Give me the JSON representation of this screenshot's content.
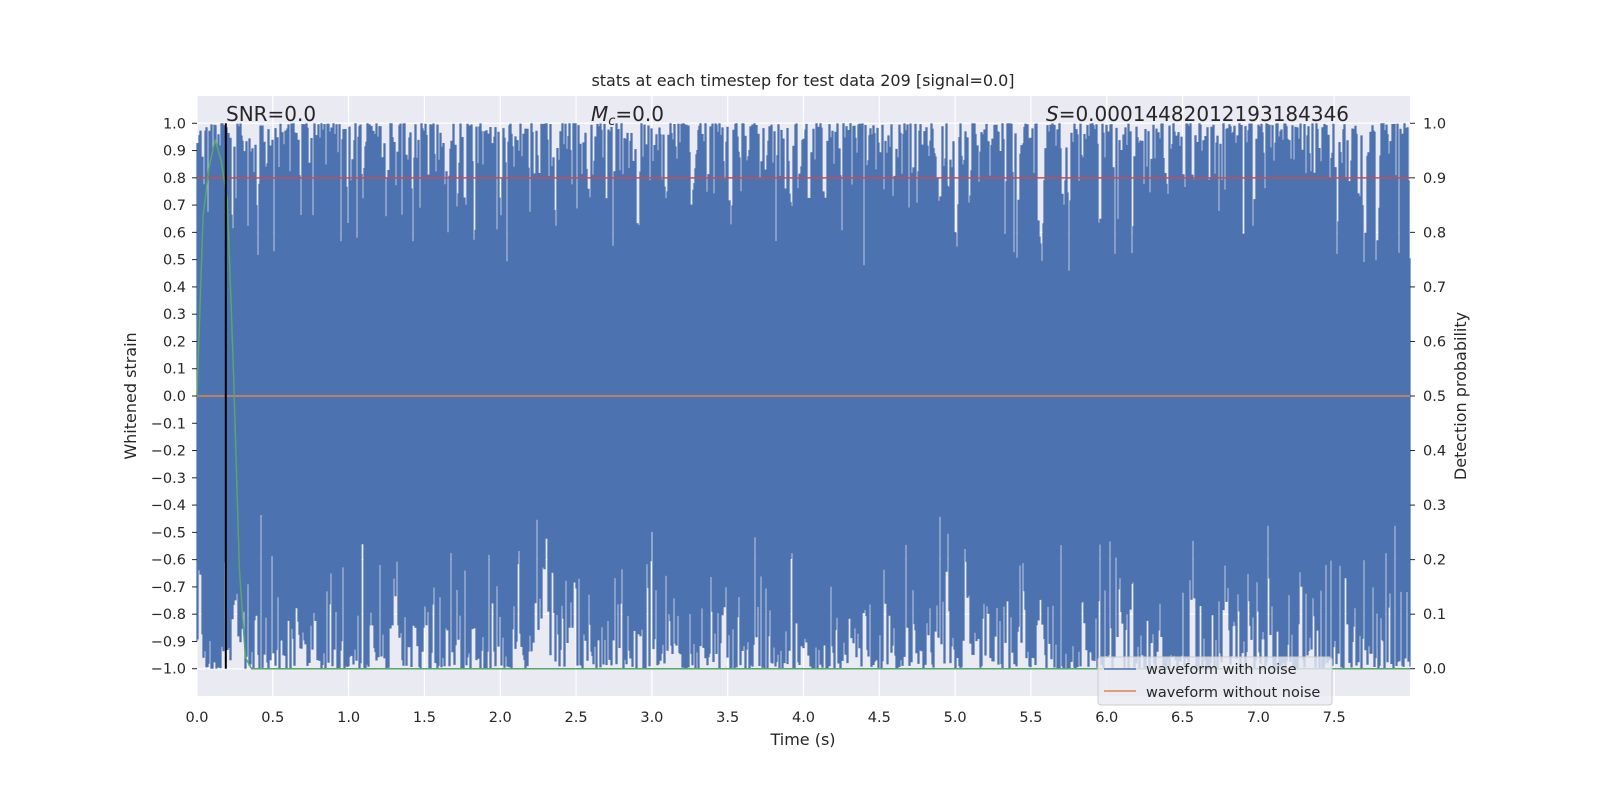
{
  "chart_data": {
    "type": "line",
    "title": "stats at each timestep for test data 209 [signal=0.0]",
    "xlabel": "Time (s)",
    "ylabel_left": "Whitened strain",
    "ylabel_right": "Detection probability",
    "xlim": [
      0.0,
      8.0
    ],
    "ylim_left": [
      -1.1,
      1.1
    ],
    "ylim_right": [
      -0.05,
      1.05
    ],
    "x_ticks": [
      "0.0",
      "0.5",
      "1.0",
      "1.5",
      "2.0",
      "2.5",
      "3.0",
      "3.5",
      "4.0",
      "4.5",
      "5.0",
      "5.5",
      "6.0",
      "6.5",
      "7.0",
      "7.5"
    ],
    "y_left_ticks": [
      "1.0",
      "0.9",
      "0.8",
      "0.7",
      "0.6",
      "0.5",
      "0.4",
      "0.3",
      "0.2",
      "0.1",
      "0.0",
      "−0.1",
      "−0.2",
      "−0.3",
      "−0.4",
      "−0.5",
      "−0.6",
      "−0.7",
      "−0.8",
      "−0.9",
      "−1.0"
    ],
    "y_right_ticks": [
      "1.0",
      "0.9",
      "0.8",
      "0.7",
      "0.6",
      "0.5",
      "0.4",
      "0.3",
      "0.2",
      "0.1",
      "0.0"
    ],
    "annotations": {
      "snr": "SNR=0.0",
      "mc_symbol": "M",
      "mc_subscript": "c",
      "mc_value": "=0.0",
      "s_symbol": "S",
      "s_value": "=0.00014482012193184346"
    },
    "legend": {
      "placement": "lower-right",
      "entries": [
        {
          "label": "waveform with noise",
          "color": "#4c72b0"
        },
        {
          "label": "waveform without noise",
          "color": "#dd8452"
        }
      ]
    },
    "series": [
      {
        "name": "waveform with noise",
        "color": "#4c72b0",
        "kind": "noise",
        "x_range": [
          0.0,
          8.0
        ],
        "y_range": [
          -1.0,
          1.0
        ]
      },
      {
        "name": "waveform without noise",
        "color": "#dd8452",
        "x": [
          0.0,
          8.0
        ],
        "y": [
          0.0,
          0.0
        ]
      },
      {
        "color": "#55a868",
        "axis": "right",
        "x": [
          0.0,
          0.04,
          0.08,
          0.12,
          0.16,
          0.2,
          0.24,
          0.28,
          0.32,
          0.36,
          8.0
        ],
        "y": [
          0.5,
          0.83,
          0.92,
          0.97,
          0.93,
          0.86,
          0.55,
          0.18,
          0.02,
          0.0,
          0.0
        ]
      },
      {
        "color": "#c44e52",
        "axis": "right",
        "x": [
          0.0,
          8.0
        ],
        "y": [
          0.9,
          0.9
        ]
      }
    ],
    "marker_line": {
      "x": 0.19,
      "color": "#000000"
    },
    "grid": true
  }
}
